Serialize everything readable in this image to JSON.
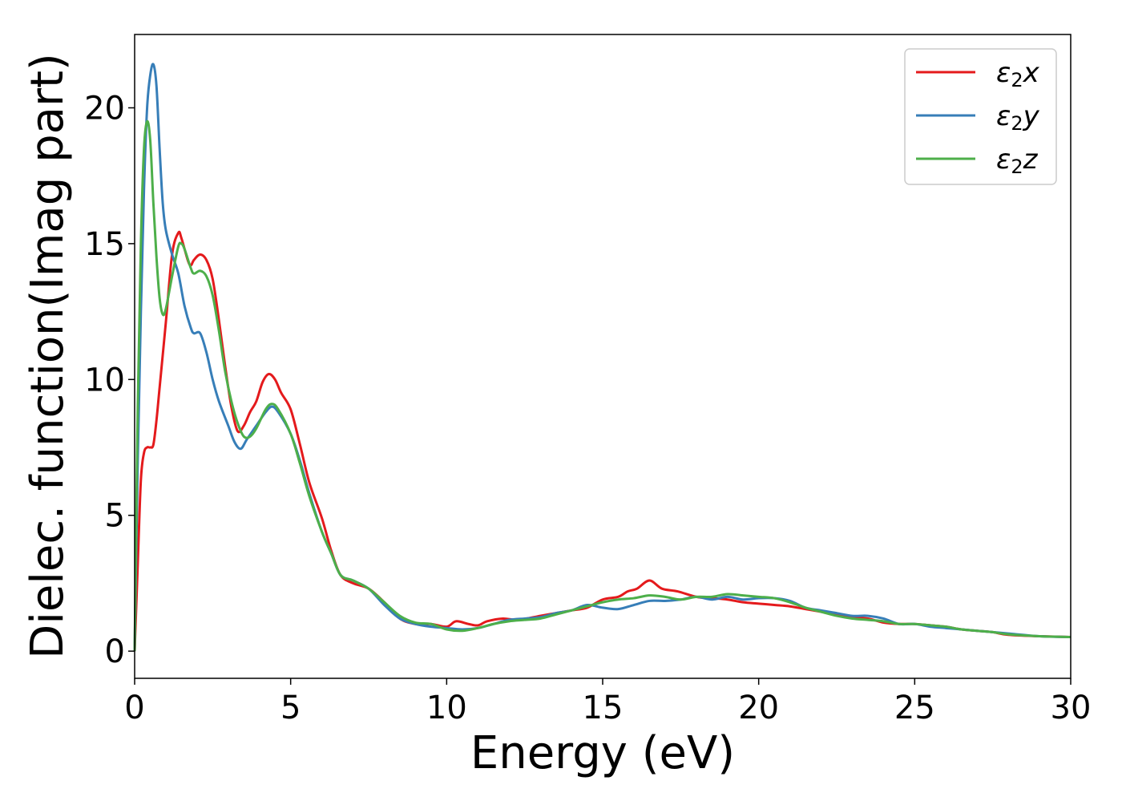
{
  "chart_data": {
    "type": "line",
    "title": "",
    "xlabel": "Energy (eV)",
    "ylabel": "Dielec. function(Imag part)",
    "xlim": [
      0,
      30
    ],
    "ylim": [
      -1.0,
      22.7
    ],
    "xticks": [
      0,
      5,
      10,
      15,
      20,
      25,
      30
    ],
    "yticks": [
      0,
      5,
      10,
      15,
      20
    ],
    "xtick_labels": [
      "0",
      "5",
      "10",
      "15",
      "20",
      "25",
      "30"
    ],
    "ytick_labels": [
      "0",
      "5",
      "10",
      "15",
      "20"
    ],
    "grid": false,
    "legend_position": "top-right",
    "series": [
      {
        "name": "ε2x",
        "legend": {
          "symbol": "ε",
          "sub": "2",
          "axis": "x"
        },
        "color": "#e41a1c",
        "points": [
          [
            0,
            0
          ],
          [
            0.1,
            3.2
          ],
          [
            0.2,
            6.3
          ],
          [
            0.3,
            7.3
          ],
          [
            0.4,
            7.5
          ],
          [
            0.5,
            7.5
          ],
          [
            0.6,
            7.6
          ],
          [
            0.7,
            8.5
          ],
          [
            0.8,
            9.7
          ],
          [
            1.0,
            12.1
          ],
          [
            1.2,
            14.6
          ],
          [
            1.4,
            15.4
          ],
          [
            1.5,
            15.2
          ],
          [
            1.7,
            14.4
          ],
          [
            1.8,
            14.2
          ],
          [
            1.9,
            14.4
          ],
          [
            2.1,
            14.6
          ],
          [
            2.3,
            14.4
          ],
          [
            2.5,
            13.7
          ],
          [
            2.7,
            12.2
          ],
          [
            2.9,
            10.5
          ],
          [
            3.1,
            9.0
          ],
          [
            3.3,
            8.1
          ],
          [
            3.5,
            8.3
          ],
          [
            3.7,
            8.8
          ],
          [
            3.9,
            9.2
          ],
          [
            4.1,
            9.9
          ],
          [
            4.3,
            10.2
          ],
          [
            4.5,
            10.0
          ],
          [
            4.7,
            9.5
          ],
          [
            5.0,
            8.9
          ],
          [
            5.3,
            7.6
          ],
          [
            5.6,
            6.2
          ],
          [
            6.0,
            4.9
          ],
          [
            6.3,
            3.7
          ],
          [
            6.6,
            2.8
          ],
          [
            7.0,
            2.5
          ],
          [
            7.5,
            2.3
          ],
          [
            8.0,
            1.8
          ],
          [
            8.5,
            1.2
          ],
          [
            9.0,
            1.0
          ],
          [
            9.5,
            1.0
          ],
          [
            10.0,
            0.9
          ],
          [
            10.3,
            1.1
          ],
          [
            10.7,
            1.0
          ],
          [
            11.0,
            0.95
          ],
          [
            11.3,
            1.1
          ],
          [
            11.8,
            1.2
          ],
          [
            12.3,
            1.15
          ],
          [
            13.0,
            1.3
          ],
          [
            13.5,
            1.4
          ],
          [
            14.0,
            1.5
          ],
          [
            14.5,
            1.6
          ],
          [
            15.0,
            1.9
          ],
          [
            15.5,
            2.0
          ],
          [
            15.8,
            2.2
          ],
          [
            16.1,
            2.3
          ],
          [
            16.5,
            2.6
          ],
          [
            16.9,
            2.3
          ],
          [
            17.4,
            2.2
          ],
          [
            18.0,
            2.0
          ],
          [
            18.5,
            1.95
          ],
          [
            19.0,
            1.9
          ],
          [
            19.5,
            1.8
          ],
          [
            20.0,
            1.75
          ],
          [
            20.5,
            1.7
          ],
          [
            21.0,
            1.65
          ],
          [
            21.5,
            1.55
          ],
          [
            22.0,
            1.45
          ],
          [
            22.5,
            1.35
          ],
          [
            23.0,
            1.25
          ],
          [
            23.5,
            1.2
          ],
          [
            24.0,
            1.05
          ],
          [
            24.5,
            1.0
          ],
          [
            25.0,
            1.0
          ],
          [
            25.5,
            0.95
          ],
          [
            26.0,
            0.9
          ],
          [
            26.5,
            0.8
          ],
          [
            27.0,
            0.75
          ],
          [
            27.5,
            0.7
          ],
          [
            28.0,
            0.6
          ],
          [
            29.0,
            0.55
          ],
          [
            30.0,
            0.52
          ]
        ]
      },
      {
        "name": "ε2y",
        "legend": {
          "symbol": "ε",
          "sub": "2",
          "axis": "y"
        },
        "color": "#377eb8",
        "points": [
          [
            0,
            0
          ],
          [
            0.1,
            7.0
          ],
          [
            0.2,
            12.5
          ],
          [
            0.3,
            17.0
          ],
          [
            0.4,
            20.0
          ],
          [
            0.5,
            21.2
          ],
          [
            0.6,
            21.6
          ],
          [
            0.7,
            20.8
          ],
          [
            0.8,
            18.5
          ],
          [
            0.9,
            16.5
          ],
          [
            1.0,
            15.5
          ],
          [
            1.2,
            14.6
          ],
          [
            1.4,
            13.9
          ],
          [
            1.6,
            12.7
          ],
          [
            1.8,
            11.9
          ],
          [
            1.9,
            11.7
          ],
          [
            2.1,
            11.7
          ],
          [
            2.3,
            11.0
          ],
          [
            2.5,
            10.0
          ],
          [
            2.7,
            9.2
          ],
          [
            3.0,
            8.3
          ],
          [
            3.2,
            7.7
          ],
          [
            3.4,
            7.45
          ],
          [
            3.6,
            7.8
          ],
          [
            3.9,
            8.3
          ],
          [
            4.2,
            8.8
          ],
          [
            4.4,
            9.0
          ],
          [
            4.6,
            8.8
          ],
          [
            5.0,
            8.0
          ],
          [
            5.3,
            7.0
          ],
          [
            5.6,
            5.8
          ],
          [
            6.0,
            4.4
          ],
          [
            6.3,
            3.6
          ],
          [
            6.6,
            2.8
          ],
          [
            7.0,
            2.6
          ],
          [
            7.5,
            2.3
          ],
          [
            8.0,
            1.7
          ],
          [
            8.5,
            1.2
          ],
          [
            9.0,
            1.0
          ],
          [
            9.5,
            0.9
          ],
          [
            10.0,
            0.85
          ],
          [
            10.5,
            0.8
          ],
          [
            11.0,
            0.85
          ],
          [
            11.5,
            1.0
          ],
          [
            12.0,
            1.15
          ],
          [
            12.5,
            1.2
          ],
          [
            13.0,
            1.25
          ],
          [
            13.5,
            1.4
          ],
          [
            14.0,
            1.5
          ],
          [
            14.5,
            1.7
          ],
          [
            15.0,
            1.6
          ],
          [
            15.5,
            1.55
          ],
          [
            16.0,
            1.7
          ],
          [
            16.5,
            1.85
          ],
          [
            17.0,
            1.85
          ],
          [
            17.5,
            1.9
          ],
          [
            18.0,
            2.0
          ],
          [
            18.5,
            1.9
          ],
          [
            19.0,
            2.0
          ],
          [
            19.5,
            1.9
          ],
          [
            20.0,
            1.95
          ],
          [
            20.5,
            1.95
          ],
          [
            21.0,
            1.85
          ],
          [
            21.5,
            1.6
          ],
          [
            22.0,
            1.5
          ],
          [
            22.5,
            1.4
          ],
          [
            23.0,
            1.3
          ],
          [
            23.5,
            1.3
          ],
          [
            24.0,
            1.2
          ],
          [
            24.5,
            1.0
          ],
          [
            25.0,
            1.0
          ],
          [
            25.5,
            0.9
          ],
          [
            26.0,
            0.85
          ],
          [
            26.5,
            0.8
          ],
          [
            27.0,
            0.75
          ],
          [
            27.5,
            0.7
          ],
          [
            28.0,
            0.65
          ],
          [
            29.0,
            0.55
          ],
          [
            30.0,
            0.52
          ]
        ]
      },
      {
        "name": "ε2z",
        "legend": {
          "symbol": "ε",
          "sub": "2",
          "axis": "z"
        },
        "color": "#4daf4a",
        "points": [
          [
            0,
            0
          ],
          [
            0.1,
            9.0
          ],
          [
            0.2,
            15.0
          ],
          [
            0.3,
            18.5
          ],
          [
            0.4,
            19.5
          ],
          [
            0.5,
            18.8
          ],
          [
            0.6,
            16.5
          ],
          [
            0.7,
            14.5
          ],
          [
            0.8,
            13.0
          ],
          [
            0.9,
            12.4
          ],
          [
            1.0,
            12.6
          ],
          [
            1.2,
            13.8
          ],
          [
            1.4,
            14.9
          ],
          [
            1.5,
            15.0
          ],
          [
            1.6,
            14.8
          ],
          [
            1.8,
            14.1
          ],
          [
            1.9,
            13.9
          ],
          [
            2.1,
            14.0
          ],
          [
            2.3,
            13.8
          ],
          [
            2.5,
            13.1
          ],
          [
            2.7,
            11.8
          ],
          [
            2.9,
            10.3
          ],
          [
            3.1,
            9.2
          ],
          [
            3.3,
            8.4
          ],
          [
            3.5,
            7.9
          ],
          [
            3.7,
            7.9
          ],
          [
            3.9,
            8.2
          ],
          [
            4.2,
            8.9
          ],
          [
            4.4,
            9.1
          ],
          [
            4.6,
            8.9
          ],
          [
            5.0,
            8.0
          ],
          [
            5.3,
            6.9
          ],
          [
            5.6,
            5.7
          ],
          [
            6.0,
            4.4
          ],
          [
            6.3,
            3.6
          ],
          [
            6.6,
            2.8
          ],
          [
            7.0,
            2.6
          ],
          [
            7.5,
            2.3
          ],
          [
            8.0,
            1.8
          ],
          [
            8.5,
            1.3
          ],
          [
            9.0,
            1.05
          ],
          [
            9.5,
            1.0
          ],
          [
            10.0,
            0.8
          ],
          [
            10.5,
            0.75
          ],
          [
            11.0,
            0.85
          ],
          [
            11.5,
            1.0
          ],
          [
            12.0,
            1.1
          ],
          [
            12.5,
            1.15
          ],
          [
            13.0,
            1.2
          ],
          [
            13.5,
            1.35
          ],
          [
            14.0,
            1.5
          ],
          [
            14.5,
            1.65
          ],
          [
            15.0,
            1.8
          ],
          [
            15.5,
            1.9
          ],
          [
            16.0,
            1.95
          ],
          [
            16.5,
            2.05
          ],
          [
            17.0,
            2.0
          ],
          [
            17.5,
            1.9
          ],
          [
            18.0,
            2.0
          ],
          [
            18.5,
            2.0
          ],
          [
            19.0,
            2.1
          ],
          [
            19.5,
            2.05
          ],
          [
            20.0,
            2.0
          ],
          [
            20.5,
            1.95
          ],
          [
            21.0,
            1.8
          ],
          [
            21.5,
            1.6
          ],
          [
            22.0,
            1.45
          ],
          [
            22.5,
            1.3
          ],
          [
            23.0,
            1.2
          ],
          [
            23.5,
            1.15
          ],
          [
            24.0,
            1.1
          ],
          [
            24.5,
            1.0
          ],
          [
            25.0,
            1.0
          ],
          [
            25.5,
            0.95
          ],
          [
            26.0,
            0.9
          ],
          [
            26.5,
            0.8
          ],
          [
            27.0,
            0.75
          ],
          [
            27.5,
            0.7
          ],
          [
            28.0,
            0.62
          ],
          [
            29.0,
            0.55
          ],
          [
            30.0,
            0.52
          ]
        ]
      }
    ]
  }
}
